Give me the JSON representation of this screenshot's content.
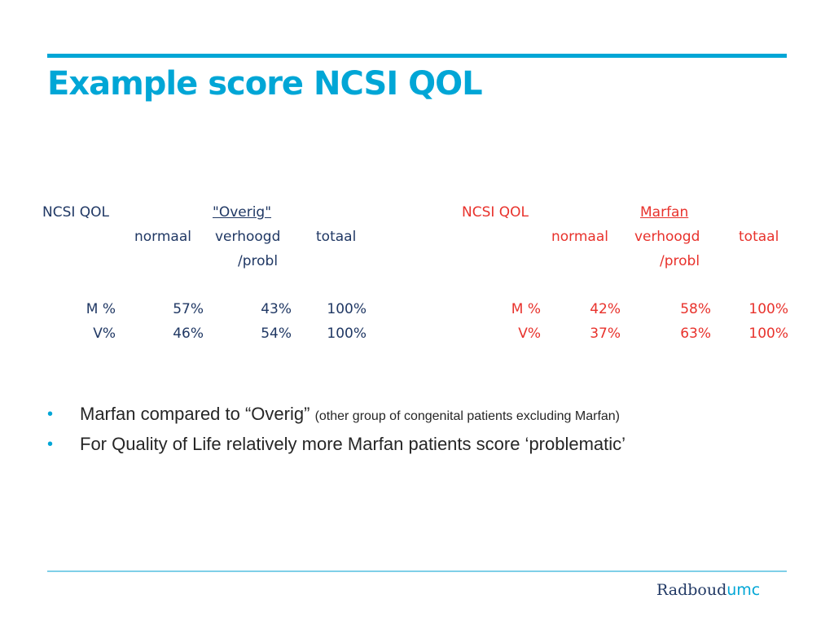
{
  "slide": {
    "title": "Example score NCSI QOL"
  },
  "left_table": {
    "label": "NCSI QOL",
    "group": "\"Overig\"",
    "headers": [
      "normaal",
      "verhoogd",
      "/probl",
      "totaal"
    ],
    "rows": [
      {
        "label": "M %",
        "normaal": "57%",
        "verhoogd": "43%",
        "totaal": "100%"
      },
      {
        "label": "V%",
        "normaal": "46%",
        "verhoogd": "54%",
        "totaal": "100%"
      }
    ]
  },
  "right_table": {
    "label": "NCSI QOL",
    "group": "Marfan",
    "headers": [
      "normaal",
      "verhoogd",
      "/probl",
      "totaal"
    ],
    "rows": [
      {
        "label": "M %",
        "normaal": "42%",
        "verhoogd": "58%",
        "totaal": "100%"
      },
      {
        "label": "V%",
        "normaal": "37%",
        "verhoogd": "63%",
        "totaal": "100%"
      }
    ]
  },
  "bullets": [
    {
      "text": "Marfan compared to “Overig”",
      "note": "(other group of congenital patients excluding Marfan)"
    },
    {
      "text": "For Quality of Life relatively more Marfan patients score ‘problematic’",
      "note": ""
    }
  ],
  "footer": {
    "logo_main": "Radboud",
    "logo_suffix": "umc"
  },
  "colors": {
    "accent": "#00a6d6",
    "left_table_text": "#203864",
    "right_table_text": "#e8322c"
  }
}
